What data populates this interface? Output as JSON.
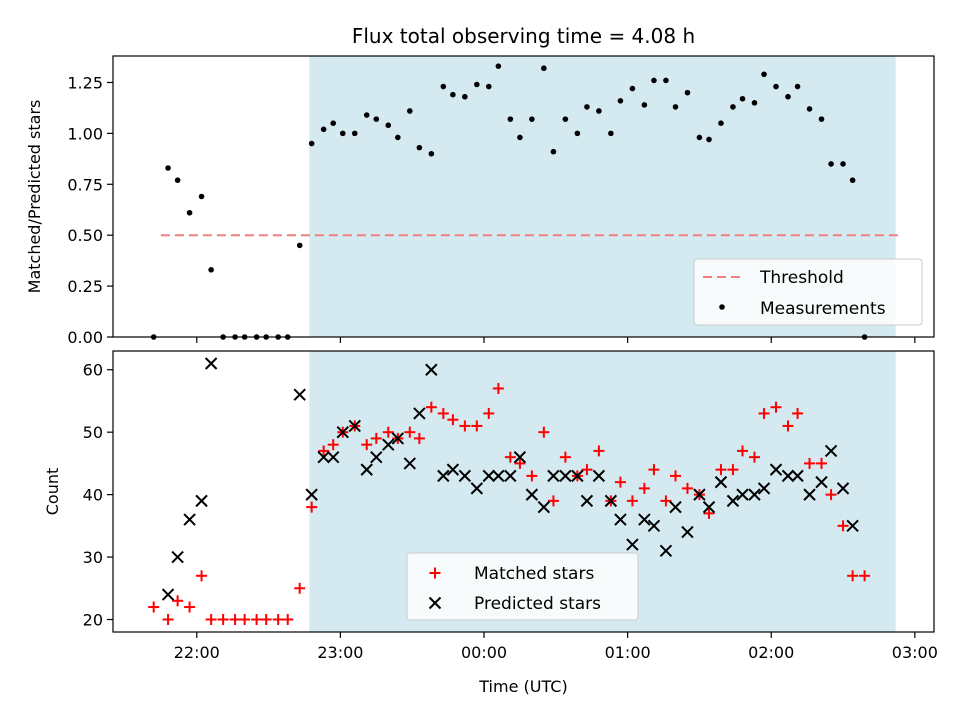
{
  "chart_data": [
    {
      "type": "scatter",
      "title": "Flux total observing time = 4.08 h",
      "xlabel": "",
      "ylabel": "Matched/Predicted stars",
      "ylim": [
        0,
        1.38
      ],
      "y_ticks": [
        "0.00",
        "0.25",
        "0.50",
        "0.75",
        "1.00",
        "1.25"
      ],
      "x_ticks": [
        "22:00",
        "23:00",
        "00:00",
        "01:00",
        "02:00",
        "03:00"
      ],
      "tick_labels_visible": false,
      "observing_window": {
        "start": "22:47",
        "end": "02:52",
        "color": "#d4eaf0"
      },
      "threshold": {
        "name": "Threshold",
        "y": 0.5,
        "x_start": "21:45",
        "x_end": "02:55",
        "color": "#f08080"
      },
      "series": [
        {
          "name": "Measurements",
          "color": "#000000",
          "marker": "dot",
          "points": [
            [
              "21:42",
              0.0
            ],
            [
              "21:48",
              0.83
            ],
            [
              "21:52",
              0.77
            ],
            [
              "21:57",
              0.61
            ],
            [
              "22:02",
              0.69
            ],
            [
              "22:06",
              0.33
            ],
            [
              "22:11",
              0.0
            ],
            [
              "22:16",
              0.0
            ],
            [
              "22:20",
              0.0
            ],
            [
              "22:25",
              0.0
            ],
            [
              "22:29",
              0.0
            ],
            [
              "22:34",
              0.0
            ],
            [
              "22:38",
              0.0
            ],
            [
              "22:43",
              0.45
            ],
            [
              "22:48",
              0.95
            ],
            [
              "22:53",
              1.02
            ],
            [
              "22:57",
              1.05
            ],
            [
              "23:01",
              1.0
            ],
            [
              "23:06",
              1.0
            ],
            [
              "23:11",
              1.09
            ],
            [
              "23:15",
              1.07
            ],
            [
              "23:20",
              1.04
            ],
            [
              "23:24",
              0.98
            ],
            [
              "23:29",
              1.11
            ],
            [
              "23:33",
              0.93
            ],
            [
              "23:38",
              0.9
            ],
            [
              "23:43",
              1.23
            ],
            [
              "23:47",
              1.19
            ],
            [
              "23:52",
              1.18
            ],
            [
              "23:57",
              1.24
            ],
            [
              "00:02",
              1.23
            ],
            [
              "00:06",
              1.33
            ],
            [
              "00:11",
              1.07
            ],
            [
              "00:15",
              0.98
            ],
            [
              "00:20",
              1.07
            ],
            [
              "00:25",
              1.32
            ],
            [
              "00:29",
              0.91
            ],
            [
              "00:34",
              1.07
            ],
            [
              "00:39",
              1.0
            ],
            [
              "00:43",
              1.13
            ],
            [
              "00:48",
              1.11
            ],
            [
              "00:53",
              1.0
            ],
            [
              "00:57",
              1.16
            ],
            [
              "01:02",
              1.22
            ],
            [
              "01:07",
              1.14
            ],
            [
              "01:11",
              1.26
            ],
            [
              "01:16",
              1.26
            ],
            [
              "01:20",
              1.13
            ],
            [
              "01:25",
              1.2
            ],
            [
              "01:30",
              0.98
            ],
            [
              "01:34",
              0.97
            ],
            [
              "01:39",
              1.05
            ],
            [
              "01:44",
              1.13
            ],
            [
              "01:48",
              1.17
            ],
            [
              "01:53",
              1.15
            ],
            [
              "01:57",
              1.29
            ],
            [
              "02:02",
              1.23
            ],
            [
              "02:07",
              1.18
            ],
            [
              "02:11",
              1.23
            ],
            [
              "02:16",
              1.12
            ],
            [
              "02:21",
              1.07
            ],
            [
              "02:25",
              0.85
            ],
            [
              "02:30",
              0.85
            ],
            [
              "02:34",
              0.77
            ],
            [
              "02:39",
              0.0
            ]
          ]
        }
      ],
      "legend": {
        "position": "lower right",
        "entries": [
          "Threshold",
          "Measurements"
        ]
      }
    },
    {
      "type": "scatter",
      "title": "",
      "xlabel": "Time (UTC)",
      "ylabel": "Count",
      "ylim": [
        18,
        63
      ],
      "y_ticks": [
        "20",
        "30",
        "40",
        "50",
        "60"
      ],
      "x_ticks": [
        "22:00",
        "23:00",
        "00:00",
        "01:00",
        "02:00",
        "03:00"
      ],
      "observing_window": {
        "start": "22:47",
        "end": "02:52",
        "color": "#d4eaf0"
      },
      "series": [
        {
          "name": "Matched stars",
          "color": "#ff0000",
          "marker": "plus",
          "points": [
            [
              "21:42",
              22
            ],
            [
              "21:48",
              20
            ],
            [
              "21:52",
              23
            ],
            [
              "21:57",
              22
            ],
            [
              "22:02",
              27
            ],
            [
              "22:06",
              20
            ],
            [
              "22:11",
              20
            ],
            [
              "22:16",
              20
            ],
            [
              "22:20",
              20
            ],
            [
              "22:25",
              20
            ],
            [
              "22:29",
              20
            ],
            [
              "22:34",
              20
            ],
            [
              "22:38",
              20
            ],
            [
              "22:43",
              25
            ],
            [
              "22:48",
              38
            ],
            [
              "22:53",
              47
            ],
            [
              "22:57",
              48
            ],
            [
              "23:01",
              50
            ],
            [
              "23:06",
              51
            ],
            [
              "23:11",
              48
            ],
            [
              "23:15",
              49
            ],
            [
              "23:20",
              50
            ],
            [
              "23:24",
              49
            ],
            [
              "23:29",
              50
            ],
            [
              "23:33",
              49
            ],
            [
              "23:38",
              54
            ],
            [
              "23:43",
              53
            ],
            [
              "23:47",
              52
            ],
            [
              "23:52",
              51
            ],
            [
              "23:57",
              51
            ],
            [
              "00:02",
              53
            ],
            [
              "00:06",
              57
            ],
            [
              "00:11",
              46
            ],
            [
              "00:15",
              45
            ],
            [
              "00:20",
              43
            ],
            [
              "00:25",
              50
            ],
            [
              "00:29",
              39
            ],
            [
              "00:34",
              46
            ],
            [
              "00:39",
              43
            ],
            [
              "00:43",
              44
            ],
            [
              "00:48",
              47
            ],
            [
              "00:53",
              39
            ],
            [
              "00:57",
              42
            ],
            [
              "01:02",
              39
            ],
            [
              "01:07",
              41
            ],
            [
              "01:11",
              44
            ],
            [
              "01:16",
              39
            ],
            [
              "01:20",
              43
            ],
            [
              "01:25",
              41
            ],
            [
              "01:30",
              40
            ],
            [
              "01:34",
              37
            ],
            [
              "01:39",
              44
            ],
            [
              "01:44",
              44
            ],
            [
              "01:48",
              47
            ],
            [
              "01:53",
              46
            ],
            [
              "01:57",
              53
            ],
            [
              "02:02",
              54
            ],
            [
              "02:07",
              51
            ],
            [
              "02:11",
              53
            ],
            [
              "02:16",
              45
            ],
            [
              "02:21",
              45
            ],
            [
              "02:25",
              40
            ],
            [
              "02:30",
              35
            ],
            [
              "02:34",
              27
            ],
            [
              "02:39",
              27
            ]
          ]
        },
        {
          "name": "Predicted stars",
          "color": "#000000",
          "marker": "x",
          "points": [
            [
              "21:48",
              24
            ],
            [
              "21:52",
              30
            ],
            [
              "21:57",
              36
            ],
            [
              "22:02",
              39
            ],
            [
              "22:06",
              61
            ],
            [
              "22:43",
              56
            ],
            [
              "22:48",
              40
            ],
            [
              "22:53",
              46
            ],
            [
              "22:57",
              46
            ],
            [
              "23:01",
              50
            ],
            [
              "23:06",
              51
            ],
            [
              "23:11",
              44
            ],
            [
              "23:15",
              46
            ],
            [
              "23:20",
              48
            ],
            [
              "23:24",
              49
            ],
            [
              "23:29",
              45
            ],
            [
              "23:33",
              53
            ],
            [
              "23:38",
              60
            ],
            [
              "23:43",
              43
            ],
            [
              "23:47",
              44
            ],
            [
              "23:52",
              43
            ],
            [
              "23:57",
              41
            ],
            [
              "00:02",
              43
            ],
            [
              "00:06",
              43
            ],
            [
              "00:11",
              43
            ],
            [
              "00:15",
              46
            ],
            [
              "00:20",
              40
            ],
            [
              "00:25",
              38
            ],
            [
              "00:29",
              43
            ],
            [
              "00:34",
              43
            ],
            [
              "00:39",
              43
            ],
            [
              "00:43",
              39
            ],
            [
              "00:48",
              43
            ],
            [
              "00:53",
              39
            ],
            [
              "00:57",
              36
            ],
            [
              "01:02",
              32
            ],
            [
              "01:07",
              36
            ],
            [
              "01:11",
              35
            ],
            [
              "01:16",
              31
            ],
            [
              "01:20",
              38
            ],
            [
              "01:25",
              34
            ],
            [
              "01:30",
              40
            ],
            [
              "01:34",
              38
            ],
            [
              "01:39",
              42
            ],
            [
              "01:44",
              39
            ],
            [
              "01:48",
              40
            ],
            [
              "01:53",
              40
            ],
            [
              "01:57",
              41
            ],
            [
              "02:02",
              44
            ],
            [
              "02:07",
              43
            ],
            [
              "02:11",
              43
            ],
            [
              "02:16",
              40
            ],
            [
              "02:21",
              42
            ],
            [
              "02:25",
              47
            ],
            [
              "02:30",
              41
            ],
            [
              "02:34",
              35
            ]
          ]
        }
      ],
      "legend": {
        "position": "lower center",
        "entries": [
          "Matched stars",
          "Predicted stars"
        ]
      }
    }
  ]
}
